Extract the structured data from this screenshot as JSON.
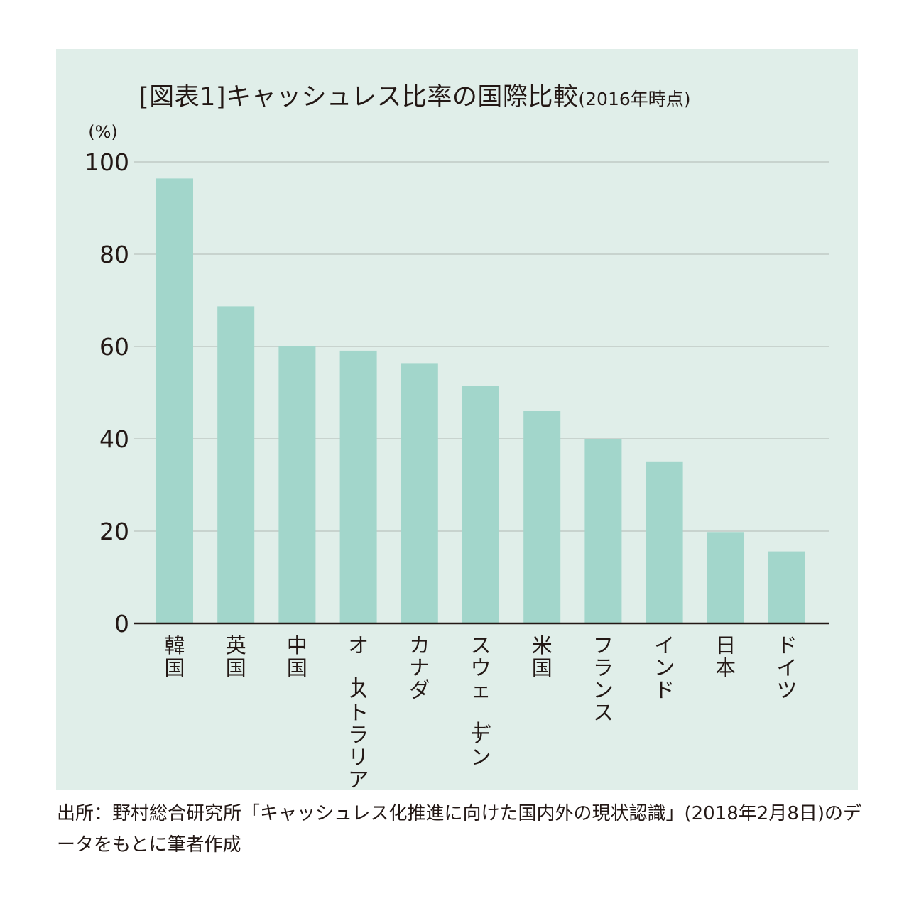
{
  "title": "[図表1]キャッシュレス比率の国際比較",
  "subtitle": "(2016年時点)",
  "unit_label": "(%)",
  "source": "出所：野村総合研究所「キャッシュレス化推進に向けた国内外の現状認識」(2018年2月8日)のデータをもとに筆者作成",
  "colors": {
    "background": "#e0eee9",
    "bar": "#a2d6cb",
    "grid": "#b9c3bf",
    "axis": "#231815",
    "text": "#231815"
  },
  "chart_data": {
    "type": "bar",
    "title": "[図表1]キャッシュレス比率の国際比較(2016年時点)",
    "ylabel": "(%)",
    "xlabel": "",
    "categories": [
      "韓国",
      "英国",
      "中国",
      "オーストラリア",
      "カナダ",
      "スウェーデン",
      "米国",
      "フランス",
      "インド",
      "日本",
      "ドイツ"
    ],
    "values": [
      96.4,
      68.7,
      60.0,
      59.1,
      56.4,
      51.5,
      46.0,
      39.9,
      35.1,
      19.8,
      15.6
    ],
    "ylim": [
      0,
      100
    ],
    "yticks": [
      0,
      20,
      40,
      60,
      80,
      100
    ],
    "grid": true,
    "legend": "none"
  }
}
